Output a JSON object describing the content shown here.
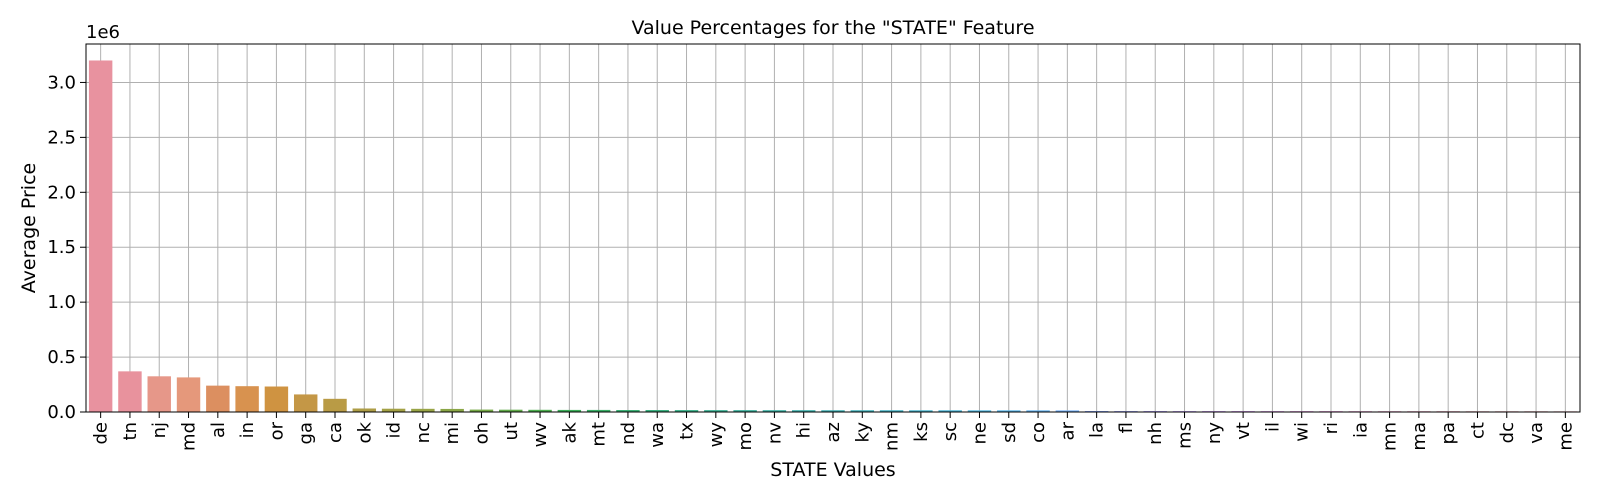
{
  "chart_data": {
    "type": "bar",
    "title": "Value Percentages for the \"STATE\" Feature",
    "xlabel": "STATE Values",
    "ylabel": "Average Price",
    "y_offset_label": "1e6",
    "ylim": [
      0,
      3350000
    ],
    "yticks": [
      0,
      500000,
      1000000,
      1500000,
      2000000,
      2500000,
      3000000
    ],
    "ytick_labels": [
      "0.0",
      "0.5",
      "1.0",
      "1.5",
      "2.0",
      "2.5",
      "3.0"
    ],
    "grid": true,
    "categories": [
      "de",
      "tn",
      "nj",
      "md",
      "al",
      "in",
      "or",
      "ga",
      "ca",
      "ok",
      "id",
      "nc",
      "mi",
      "oh",
      "ut",
      "wv",
      "ak",
      "mt",
      "nd",
      "wa",
      "tx",
      "wy",
      "mo",
      "nv",
      "hi",
      "az",
      "ky",
      "nm",
      "ks",
      "sc",
      "ne",
      "sd",
      "co",
      "ar",
      "la",
      "fl",
      "nh",
      "ms",
      "ny",
      "vt",
      "il",
      "wi",
      "ri",
      "ia",
      "mn",
      "ma",
      "pa",
      "ct",
      "dc",
      "va",
      "me"
    ],
    "values": [
      3200000,
      370000,
      325000,
      315000,
      240000,
      235000,
      232000,
      160000,
      120000,
      32000,
      30000,
      29000,
      28000,
      22000,
      21000,
      20000,
      19000,
      19000,
      18000,
      18000,
      17500,
      17000,
      17000,
      16500,
      16500,
      16000,
      16000,
      16000,
      15500,
      15500,
      15000,
      15000,
      15000,
      14500,
      9000,
      8500,
      8500,
      8000,
      8000,
      8000,
      7500,
      7500,
      7500,
      7000,
      7000,
      7000,
      7000,
      6500,
      6500,
      6500,
      6000
    ],
    "colors": [
      "#e8929f",
      "#e8929d",
      "#e69789",
      "#e5987b",
      "#dc8f60",
      "#d8924f",
      "#cf9341",
      "#c49746",
      "#b99b45",
      "#ad9d46",
      "#a3a145",
      "#98a446",
      "#8aa646",
      "#76a946",
      "#62ab4a",
      "#4dae4f",
      "#3cae59",
      "#39ae66",
      "#38ae72",
      "#37ae7d",
      "#36ae86",
      "#36ae8f",
      "#37ae98",
      "#37aea0",
      "#38ada7",
      "#3aadb0",
      "#3baeb8",
      "#3daec1",
      "#3fb0ca",
      "#42b1d3",
      "#48b2dd",
      "#52b2e7",
      "#5fb1ef",
      "#6eadf6",
      "#85a4f7",
      "#989ef7",
      "#a898f7",
      "#b791f6",
      "#c38ff2",
      "#ce8aed",
      "#d886e6",
      "#e084de",
      "#e584d4",
      "#e886c9",
      "#ea8bbf",
      "#ec8fb4",
      "#ea8fa9",
      "#e98fa0",
      "#e8929f",
      "#e8929d",
      "#e9949f"
    ]
  }
}
